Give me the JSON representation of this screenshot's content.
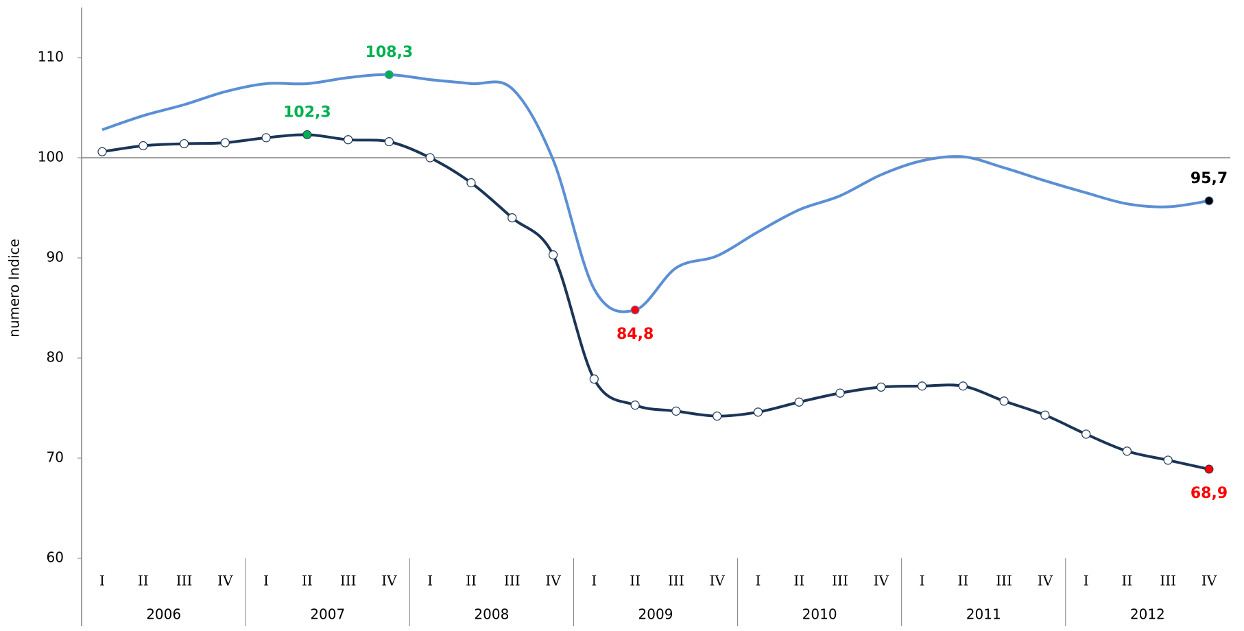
{
  "chart_data": {
    "type": "line",
    "y_label": "numero Indice",
    "categories": [
      "I",
      "II",
      "III",
      "IV",
      "I",
      "II",
      "III",
      "IV",
      "I",
      "II",
      "III",
      "IV",
      "I",
      "II",
      "III",
      "IV",
      "I",
      "II",
      "III",
      "IV",
      "I",
      "II",
      "III",
      "IV",
      "I",
      "II",
      "III",
      "IV"
    ],
    "groups": [
      "2006",
      "2007",
      "2008",
      "2009",
      "2010",
      "2011",
      "2012"
    ],
    "ylim": [
      60,
      115
    ],
    "yticks": [
      60,
      70,
      80,
      90,
      100,
      110
    ],
    "x_axis_at": 100,
    "series": [
      {
        "color": "#5b8fd4",
        "markers": false,
        "values": [
          102.8,
          104.2,
          105.3,
          106.6,
          107.4,
          107.4,
          108.0,
          108.3,
          107.8,
          107.4,
          106.9,
          99.8,
          86.9,
          84.8,
          89.0,
          90.2,
          92.6,
          94.8,
          96.2,
          98.3,
          99.7,
          100.1,
          99.0,
          97.7,
          96.5,
          95.4,
          95.1,
          95.7
        ],
        "value_labels": [
          null,
          null,
          null,
          null,
          null,
          null,
          null,
          "108,3",
          null,
          null,
          null,
          null,
          null,
          "84,8",
          null,
          null,
          null,
          null,
          null,
          null,
          null,
          null,
          null,
          null,
          null,
          null,
          null,
          "95,7"
        ],
        "point_colors": [
          null,
          null,
          null,
          null,
          null,
          null,
          null,
          "#00b050",
          null,
          null,
          null,
          null,
          null,
          "#ff0000",
          null,
          null,
          null,
          null,
          null,
          null,
          null,
          null,
          null,
          null,
          null,
          null,
          null,
          "#000000"
        ]
      },
      {
        "color": "#1b3557",
        "markers": true,
        "values": [
          100.6,
          101.2,
          101.4,
          101.5,
          102.0,
          102.3,
          101.8,
          101.6,
          100.0,
          97.5,
          94.0,
          90.3,
          77.9,
          75.3,
          74.7,
          74.2,
          74.6,
          75.6,
          76.5,
          77.1,
          77.2,
          77.2,
          75.7,
          74.3,
          72.4,
          70.7,
          69.8,
          68.9
        ],
        "value_labels": [
          null,
          null,
          null,
          null,
          null,
          "102,3",
          null,
          null,
          null,
          null,
          null,
          null,
          null,
          null,
          null,
          null,
          null,
          null,
          null,
          null,
          null,
          null,
          null,
          null,
          null,
          null,
          null,
          "68,9"
        ],
        "point_colors": [
          null,
          null,
          null,
          null,
          null,
          "#00b050",
          null,
          null,
          null,
          null,
          null,
          null,
          null,
          null,
          null,
          null,
          null,
          null,
          null,
          null,
          null,
          null,
          null,
          null,
          null,
          null,
          null,
          "#ff0000"
        ]
      }
    ]
  }
}
